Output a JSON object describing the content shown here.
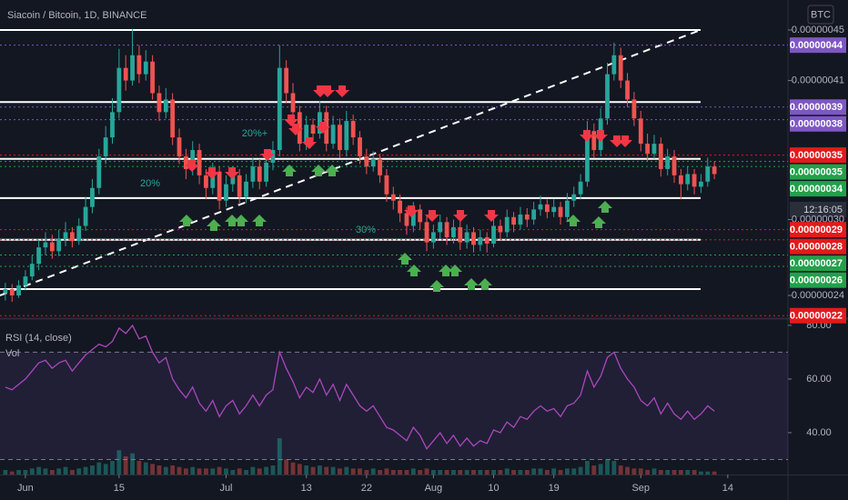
{
  "chart_data": {
    "type": "candlestick",
    "title": "Siacoin / Bitcoin, 1D, BINANCE",
    "currency": "BTC",
    "up_color": "#26a69a",
    "down_color": "#ef5350",
    "xlim": [
      -0.8,
      117.0
    ],
    "xticks": [
      {
        "value": 3,
        "label": "Jun"
      },
      {
        "value": 17,
        "label": "15"
      },
      {
        "value": 33,
        "label": "Jul"
      },
      {
        "value": 45,
        "label": "13"
      },
      {
        "value": 54,
        "label": "22"
      },
      {
        "value": 64,
        "label": "Aug"
      },
      {
        "value": 73,
        "label": "10"
      },
      {
        "value": 82,
        "label": "19"
      },
      {
        "value": 95,
        "label": "Sep"
      },
      {
        "value": 108,
        "label": "14"
      }
    ],
    "ylim": [
      2.22e-07,
      4.737e-07
    ],
    "yticks": [
      {
        "value": 4.5e-07,
        "label": "0.00000045"
      },
      {
        "value": 4.1e-07,
        "label": "0.00000041"
      },
      {
        "value": 3e-07,
        "label": "0.00000030"
      },
      {
        "value": 2.4e-07,
        "label": "0.00000024"
      }
    ],
    "hlines": [
      4.5e-07,
      3.93e-07,
      3.48e-07,
      3.17e-07,
      2.84e-07,
      2.45e-07
    ],
    "price_lines": [
      {
        "value": 4.38e-07,
        "label": "0.00000044",
        "color": "#7e57c2"
      },
      {
        "value": 3.89e-07,
        "label": "0.00000039",
        "color": "#7e57c2"
      },
      {
        "value": 3.79e-07,
        "label": "0.00000038",
        "color": "#7e57c2"
      },
      {
        "value": 3.51e-07,
        "label": "0.00000035",
        "color": "#e31a1a"
      },
      {
        "value": 3.46e-07,
        "label": "0.00000035",
        "color": "#22a04b"
      },
      {
        "value": 3.42e-07,
        "label": "0.00000034",
        "color": "#22a04b"
      },
      {
        "value": 2.92e-07,
        "label": "0.00000029",
        "color": "#e31a1a"
      },
      {
        "value": 2.84e-07,
        "label": "0.00000028",
        "color": "#e31a1a"
      },
      {
        "value": 2.72e-07,
        "label": "0.00000027",
        "color": "#22a04b"
      },
      {
        "value": 2.63e-07,
        "label": "0.00000026",
        "color": "#22a04b"
      },
      {
        "value": 2.24e-07,
        "label": "0.00000022",
        "color": "#e31a1a"
      }
    ],
    "countdown": "12:16:05",
    "annotations": [
      "20%+",
      "20%",
      "30%"
    ],
    "candles": [
      [
        2.42e-07,
        2.5e-07,
        2.36e-07,
        2.45e-07
      ],
      [
        2.45e-07,
        2.49e-07,
        2.35e-07,
        2.4e-07
      ],
      [
        2.4e-07,
        2.52e-07,
        2.38e-07,
        2.48e-07
      ],
      [
        2.48e-07,
        2.6e-07,
        2.44e-07,
        2.55e-07
      ],
      [
        2.55e-07,
        2.72e-07,
        2.52e-07,
        2.65e-07
      ],
      [
        2.65e-07,
        2.84e-07,
        2.6e-07,
        2.78e-07
      ],
      [
        2.78e-07,
        2.9e-07,
        2.72e-07,
        2.82e-07
      ],
      [
        2.82e-07,
        2.88e-07,
        2.69e-07,
        2.75e-07
      ],
      [
        2.75e-07,
        2.92e-07,
        2.71e-07,
        2.85e-07
      ],
      [
        2.85e-07,
        2.98e-07,
        2.79e-07,
        2.9e-07
      ],
      [
        2.9e-07,
        2.94e-07,
        2.78e-07,
        2.83e-07
      ],
      [
        2.83e-07,
        3.01e-07,
        2.8e-07,
        2.95e-07
      ],
      [
        2.95e-07,
        3.18e-07,
        2.91e-07,
        3.1e-07
      ],
      [
        3.1e-07,
        3.32e-07,
        3.05e-07,
        3.25e-07
      ],
      [
        3.25e-07,
        3.56e-07,
        3.2e-07,
        3.5e-07
      ],
      [
        3.5e-07,
        3.74e-07,
        3.44e-07,
        3.65e-07
      ],
      [
        3.65e-07,
        3.96e-07,
        3.6e-07,
        3.85e-07
      ],
      [
        3.85e-07,
        4.35e-07,
        3.8e-07,
        4.2e-07
      ],
      [
        4.2e-07,
        4.3e-07,
        4.02e-07,
        4.1e-07
      ],
      [
        4.1e-07,
        4.51e-07,
        4.06e-07,
        4.3e-07
      ],
      [
        4.3e-07,
        4.38e-07,
        4.08e-07,
        4.15e-07
      ],
      [
        4.15e-07,
        4.34e-07,
        4.1e-07,
        4.25e-07
      ],
      [
        4.25e-07,
        4.3e-07,
        3.95e-07,
        4e-07
      ],
      [
        4e-07,
        4.06e-07,
        3.78e-07,
        3.85e-07
      ],
      [
        3.85e-07,
        4.04e-07,
        3.8e-07,
        3.95e-07
      ],
      [
        3.95e-07,
        4e-07,
        3.59e-07,
        3.65e-07
      ],
      [
        3.65e-07,
        3.72e-07,
        3.44e-07,
        3.5e-07
      ],
      [
        3.5e-07,
        3.56e-07,
        3.32e-07,
        3.4e-07
      ],
      [
        3.4e-07,
        3.62e-07,
        3.35e-07,
        3.55e-07
      ],
      [
        3.55e-07,
        3.6e-07,
        3.28e-07,
        3.35e-07
      ],
      [
        3.35e-07,
        3.4e-07,
        3.16e-07,
        3.25e-07
      ],
      [
        3.25e-07,
        3.45e-07,
        3.2e-07,
        3.38e-07
      ],
      [
        3.38e-07,
        3.42e-07,
        3.08e-07,
        3.15e-07
      ],
      [
        3.15e-07,
        3.35e-07,
        3.1e-07,
        3.28e-07
      ],
      [
        3.28e-07,
        3.42e-07,
        3.22e-07,
        3.35e-07
      ],
      [
        3.35e-07,
        3.4e-07,
        3.12e-07,
        3.18e-07
      ],
      [
        3.18e-07,
        3.36e-07,
        3.13e-07,
        3.3e-07
      ],
      [
        3.3e-07,
        3.49e-07,
        3.25e-07,
        3.42e-07
      ],
      [
        3.42e-07,
        3.48e-07,
        3.24e-07,
        3.3e-07
      ],
      [
        3.3e-07,
        3.52e-07,
        3.26e-07,
        3.45e-07
      ],
      [
        3.45e-07,
        3.62e-07,
        3.39e-07,
        3.55e-07
      ],
      [
        3.55e-07,
        4.38e-07,
        3.5e-07,
        4.2e-07
      ],
      [
        4.2e-07,
        4.26e-07,
        3.92e-07,
        4e-07
      ],
      [
        4e-07,
        4.08e-07,
        3.78e-07,
        3.85e-07
      ],
      [
        3.85e-07,
        3.9e-07,
        3.54e-07,
        3.6e-07
      ],
      [
        3.6e-07,
        3.82e-07,
        3.55e-07,
        3.75e-07
      ],
      [
        3.75e-07,
        3.8e-07,
        3.62e-07,
        3.68e-07
      ],
      [
        3.68e-07,
        3.94e-07,
        3.64e-07,
        3.85e-07
      ],
      [
        3.85e-07,
        3.9e-07,
        3.54e-07,
        3.6e-07
      ],
      [
        3.6e-07,
        3.82e-07,
        3.56e-07,
        3.75e-07
      ],
      [
        3.75e-07,
        3.8e-07,
        3.49e-07,
        3.55e-07
      ],
      [
        3.55e-07,
        3.86e-07,
        3.5e-07,
        3.78e-07
      ],
      [
        3.78e-07,
        3.83e-07,
        3.59e-07,
        3.65e-07
      ],
      [
        3.65e-07,
        3.7e-07,
        3.44e-07,
        3.5e-07
      ],
      [
        3.5e-07,
        3.56e-07,
        3.36e-07,
        3.42e-07
      ],
      [
        3.42e-07,
        3.54e-07,
        3.38e-07,
        3.48e-07
      ],
      [
        3.48e-07,
        3.52e-07,
        3.29e-07,
        3.35e-07
      ],
      [
        3.35e-07,
        3.4e-07,
        3.14e-07,
        3.2e-07
      ],
      [
        3.2e-07,
        3.26e-07,
        3.08e-07,
        3.15e-07
      ],
      [
        3.15e-07,
        3.2e-07,
        2.98e-07,
        3.05e-07
      ],
      [
        3.05e-07,
        3.1e-07,
        2.88e-07,
        2.95e-07
      ],
      [
        2.95e-07,
        3.14e-07,
        2.9e-07,
        3.08e-07
      ],
      [
        3.08e-07,
        3.12e-07,
        2.92e-07,
        2.98e-07
      ],
      [
        2.98e-07,
        3.03e-07,
        2.75e-07,
        2.82e-07
      ],
      [
        2.82e-07,
        2.96e-07,
        2.77e-07,
        2.9e-07
      ],
      [
        2.9e-07,
        3.04e-07,
        2.85e-07,
        2.98e-07
      ],
      [
        2.98e-07,
        3.02e-07,
        2.8e-07,
        2.86e-07
      ],
      [
        2.86e-07,
        3e-07,
        2.81e-07,
        2.94e-07
      ],
      [
        2.94e-07,
        2.99e-07,
        2.76e-07,
        2.82e-07
      ],
      [
        2.82e-07,
        2.96e-07,
        2.77e-07,
        2.9e-07
      ],
      [
        2.9e-07,
        2.94e-07,
        2.74e-07,
        2.8e-07
      ],
      [
        2.8e-07,
        2.92e-07,
        2.75e-07,
        2.86e-07
      ],
      [
        2.86e-07,
        2.9e-07,
        2.74e-07,
        2.81e-07
      ],
      [
        2.81e-07,
        3.02e-07,
        2.78e-07,
        2.95e-07
      ],
      [
        2.95e-07,
        3e-07,
        2.84e-07,
        2.9e-07
      ],
      [
        2.9e-07,
        3.08e-07,
        2.86e-07,
        3.02e-07
      ],
      [
        3.02e-07,
        3.06e-07,
        2.9e-07,
        2.96e-07
      ],
      [
        2.96e-07,
        3.1e-07,
        2.92e-07,
        3.04e-07
      ],
      [
        3.04e-07,
        3.09e-07,
        2.94e-07,
        3e-07
      ],
      [
        3e-07,
        3.14e-07,
        2.96e-07,
        3.08e-07
      ],
      [
        3.08e-07,
        3.19e-07,
        3.03e-07,
        3.12e-07
      ],
      [
        3.12e-07,
        3.16e-07,
        3.01e-07,
        3.06e-07
      ],
      [
        3.06e-07,
        3.16e-07,
        3.02e-07,
        3.1e-07
      ],
      [
        3.1e-07,
        3.14e-07,
        2.96e-07,
        3.02e-07
      ],
      [
        3.02e-07,
        3.21e-07,
        2.98e-07,
        3.15e-07
      ],
      [
        3.15e-07,
        3.26e-07,
        3.1e-07,
        3.2e-07
      ],
      [
        3.2e-07,
        3.36e-07,
        3.16e-07,
        3.3e-07
      ],
      [
        3.3e-07,
        3.78e-07,
        3.26e-07,
        3.7e-07
      ],
      [
        3.7e-07,
        3.76e-07,
        3.49e-07,
        3.55e-07
      ],
      [
        3.55e-07,
        3.88e-07,
        3.5e-07,
        3.8e-07
      ],
      [
        3.8e-07,
        4.24e-07,
        3.75e-07,
        4.15e-07
      ],
      [
        4.15e-07,
        4.4e-07,
        4.1e-07,
        4.3e-07
      ],
      [
        4.3e-07,
        4.36e-07,
        4.04e-07,
        4.1e-07
      ],
      [
        4.1e-07,
        4.16e-07,
        3.89e-07,
        3.95e-07
      ],
      [
        3.95e-07,
        4.01e-07,
        3.74e-07,
        3.8e-07
      ],
      [
        3.8e-07,
        3.86e-07,
        3.54e-07,
        3.6e-07
      ],
      [
        3.6e-07,
        3.68e-07,
        3.46e-07,
        3.52e-07
      ],
      [
        3.52e-07,
        3.67e-07,
        3.48e-07,
        3.6e-07
      ],
      [
        3.6e-07,
        3.65e-07,
        3.34e-07,
        3.4e-07
      ],
      [
        3.4e-07,
        3.56e-07,
        3.35e-07,
        3.5e-07
      ],
      [
        3.5e-07,
        3.55e-07,
        3.29e-07,
        3.35e-07
      ],
      [
        3.35e-07,
        3.4e-07,
        3.16e-07,
        3.28e-07
      ],
      [
        3.28e-07,
        3.42e-07,
        3.23e-07,
        3.36e-07
      ],
      [
        3.36e-07,
        3.4e-07,
        3.2e-07,
        3.26e-07
      ],
      [
        3.26e-07,
        3.36e-07,
        3.21e-07,
        3.3e-07
      ],
      [
        3.3e-07,
        3.49e-07,
        3.26e-07,
        3.42e-07
      ],
      [
        3.42e-07,
        3.46e-07,
        3.32e-07,
        3.36e-07
      ]
    ],
    "rsi": {
      "title": "RSI (14, close)",
      "color": "#ab47bc",
      "ylim": [
        24.4,
        82
      ],
      "yticks": [
        {
          "value": 80,
          "label": "80.00"
        },
        {
          "value": 60,
          "label": "60.00"
        },
        {
          "value": 40,
          "label": "40.00"
        }
      ],
      "bands": [
        70,
        30
      ],
      "values": [
        57,
        56,
        58,
        60,
        63,
        66,
        67,
        64,
        66,
        67,
        63,
        66,
        69,
        71,
        73,
        72,
        74,
        79,
        77,
        80,
        75,
        76,
        70,
        66,
        68,
        60,
        56,
        53,
        57,
        51,
        48,
        52,
        46,
        50,
        52,
        47,
        50,
        54,
        50,
        54,
        56,
        70,
        64,
        59,
        53,
        57,
        55,
        60,
        54,
        58,
        52,
        58,
        54,
        50,
        48,
        50,
        46,
        42,
        41,
        39,
        37,
        42,
        39,
        34,
        37,
        40,
        36,
        39,
        35,
        38,
        35,
        37,
        36,
        41,
        40,
        44,
        42,
        46,
        45,
        48,
        50,
        48,
        49,
        46,
        50,
        51,
        54,
        63,
        57,
        61,
        68,
        70,
        64,
        60,
        57,
        52,
        50,
        53,
        47,
        51,
        47,
        45,
        48,
        45,
        47,
        50,
        48
      ]
    },
    "volume": {
      "title": "Vol",
      "ylim": [
        0,
        24
      ],
      "values": [
        3,
        2,
        3,
        3,
        4,
        5,
        4,
        3,
        4,
        5,
        3,
        4,
        5,
        6,
        8,
        7,
        9,
        16,
        12,
        14,
        9,
        8,
        7,
        6,
        5,
        6,
        5,
        4,
        5,
        4,
        4,
        4,
        5,
        4,
        3,
        4,
        3,
        5,
        4,
        5,
        6,
        24,
        10,
        8,
        7,
        6,
        5,
        6,
        5,
        5,
        4,
        5,
        4,
        4,
        3,
        4,
        3,
        4,
        3,
        3,
        3,
        4,
        3,
        4,
        3,
        3,
        3,
        3,
        3,
        3,
        3,
        3,
        3,
        3,
        3,
        4,
        3,
        3,
        3,
        4,
        4,
        3,
        4,
        3,
        4,
        4,
        5,
        9,
        6,
        7,
        10,
        9,
        6,
        5,
        4,
        4,
        3,
        4,
        3,
        3,
        3,
        3,
        3,
        3,
        2,
        2,
        2
      ]
    }
  }
}
